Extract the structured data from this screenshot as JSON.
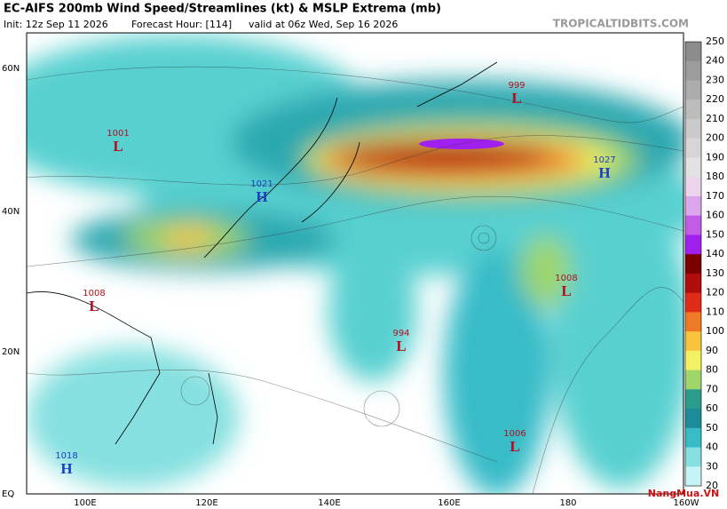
{
  "header": {
    "title": "EC-AIFS 200mb Wind Speed/Streamlines (kt) & MSLP Extrema (mb)",
    "init": "Init: 12z Sep 11 2026",
    "forecast_hour": "Forecast Hour: [114]",
    "valid": "valid at 06z Wed, Sep 16 2026",
    "source": "TROPICALTIDBITS.COM"
  },
  "map": {
    "lat_labels": [
      "60N",
      "40N",
      "20N",
      "EQ"
    ],
    "lon_labels": [
      "100E",
      "120E",
      "140E",
      "160E",
      "180",
      "160W"
    ],
    "extrema": [
      {
        "value": "1001",
        "letter": "L"
      },
      {
        "value": "1021",
        "letter": "H"
      },
      {
        "value": "999",
        "letter": "L"
      },
      {
        "value": "1027",
        "letter": "H"
      },
      {
        "value": "1008",
        "letter": "L"
      },
      {
        "value": "994",
        "letter": "L"
      },
      {
        "value": "1008",
        "letter": "L"
      },
      {
        "value": "1006",
        "letter": "L"
      },
      {
        "value": "1018",
        "letter": "H"
      }
    ]
  },
  "colorbar": {
    "labels": [
      250,
      240,
      230,
      220,
      210,
      200,
      190,
      180,
      170,
      160,
      150,
      140,
      130,
      120,
      110,
      100,
      90,
      80,
      70,
      60,
      50,
      40,
      30,
      20
    ],
    "colors": [
      "#8c8c8c",
      "#9c9c9c",
      "#acacac",
      "#bcbcbc",
      "#cacaca",
      "#d6d6d6",
      "#e2e2e2",
      "#ecd4ec",
      "#dca6ec",
      "#c25ce6",
      "#a020f0",
      "#7a0000",
      "#b00c0c",
      "#e02a1a",
      "#ee7a26",
      "#f8c43c",
      "#f4f064",
      "#9ed66a",
      "#2a9c8c",
      "#1c8c98",
      "#38bcc8",
      "#86e0e0",
      "#c6f4f4"
    ]
  },
  "watermark": "NangMua.VN"
}
